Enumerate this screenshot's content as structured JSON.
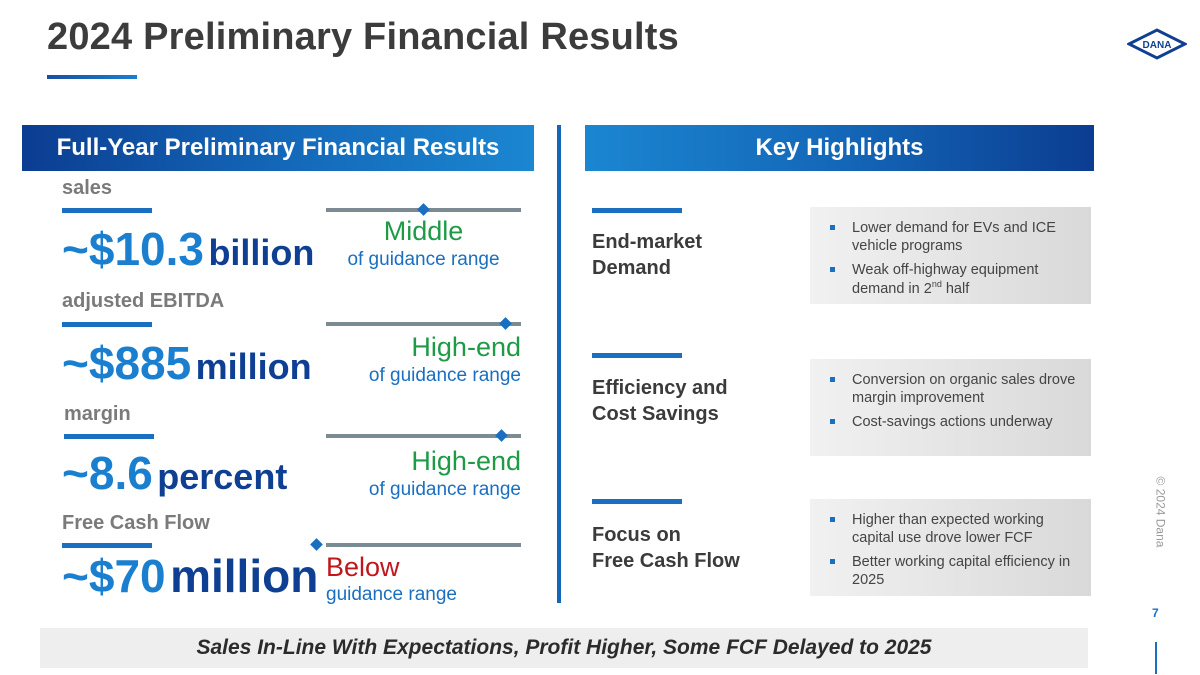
{
  "header": {
    "title": "2024 Preliminary Financial Results",
    "logo_text": "DANA"
  },
  "left_panel": {
    "title": "Full-Year Preliminary Financial Results",
    "metrics": [
      {
        "label": "sales",
        "value": "~$10.3",
        "unit": "billion",
        "guidance_main": "Middle",
        "guidance_sub": "of guidance range",
        "position_in_range": 0.5
      },
      {
        "label": "adjusted EBITDA",
        "value": "~$885",
        "unit": "million",
        "guidance_main": "High-end",
        "guidance_sub": "of guidance range",
        "position_in_range": 0.92
      },
      {
        "label": "margin",
        "value": "~8.6",
        "unit": "percent",
        "guidance_main": "High-end",
        "guidance_sub": "of guidance range",
        "position_in_range": 0.9
      },
      {
        "label": "Free Cash Flow",
        "value": "~$70",
        "unit": "million",
        "guidance_main": "Below",
        "guidance_sub": "guidance range",
        "position_in_range": -0.05
      }
    ]
  },
  "right_panel": {
    "title": "Key Highlights",
    "items": [
      {
        "title_line1": "End-market",
        "title_line2": "Demand",
        "bullets": [
          "Lower demand for EVs and ICE vehicle programs",
          "Weak off-highway equipment demand in 2nd half"
        ]
      },
      {
        "title_line1": "Efficiency and",
        "title_line2": "Cost Savings",
        "bullets": [
          "Conversion on organic sales drove margin improvement",
          "Cost-savings actions underway"
        ]
      },
      {
        "title_line1": "Focus on",
        "title_line2": "Free Cash Flow",
        "bullets": [
          "Higher than expected working capital use drove lower FCF",
          "Better working capital efficiency in 2025"
        ]
      }
    ]
  },
  "footer": {
    "banner": "Sales In-Line With Expectations, Profit Higher, Some FCF Delayed to 2025"
  },
  "meta": {
    "copyright": "© 2024 Dana",
    "page_number": "7"
  },
  "colors": {
    "accent_blue": "#1a6fc0",
    "dark_blue": "#0e3f93",
    "green": "#1f9a47",
    "red": "#c0171d"
  }
}
